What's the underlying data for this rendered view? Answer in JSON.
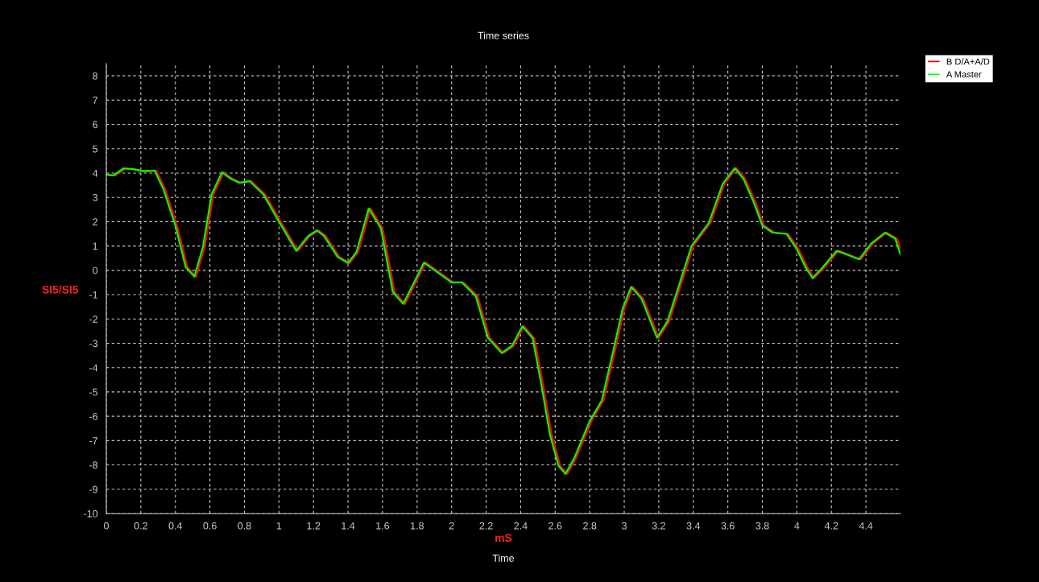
{
  "chart_data": {
    "type": "line",
    "title": "Time series",
    "xlabel": "mS",
    "ylabel": "SI5/SI5",
    "annotations": [
      "Time"
    ],
    "xlim": [
      0,
      4.6
    ],
    "xticks": [
      0,
      0.2,
      0.4,
      0.6,
      0.8,
      1,
      1.2,
      1.4,
      1.6,
      1.8,
      2,
      2.2,
      2.4,
      2.6,
      2.8,
      3,
      3.2,
      3.4,
      3.6,
      3.8,
      4,
      4.2,
      4.4
    ],
    "ylim": [
      -10,
      8.5
    ],
    "yticks": [
      -10,
      -9,
      -8,
      -7,
      -6,
      -5,
      -4,
      -3,
      -2,
      -1,
      0,
      1,
      2,
      3,
      4,
      5,
      6,
      7,
      8
    ],
    "grid": true,
    "legend": "top right",
    "marker": "none",
    "line_style": "solid",
    "series": [
      {
        "name": "B D/A+A/D",
        "color": "#ff0000",
        "x": [
          0.015,
          0.05,
          0.11,
          0.17,
          0.22,
          0.29,
          0.34,
          0.41,
          0.47,
          0.52,
          0.57,
          0.62,
          0.68,
          0.73,
          0.78,
          0.84,
          0.92,
          1.01,
          1.11,
          1.18,
          1.23,
          1.27,
          1.35,
          1.41,
          1.46,
          1.53,
          1.6,
          1.67,
          1.73,
          1.85,
          2.01,
          2.07,
          2.15,
          2.22,
          2.3,
          2.36,
          2.42,
          2.48,
          2.53,
          2.58,
          2.63,
          2.67,
          2.72,
          2.81,
          2.88,
          2.95,
          3.0,
          3.05,
          3.11,
          3.2,
          3.26,
          3.31,
          3.4,
          3.5,
          3.58,
          3.65,
          3.7,
          3.76,
          3.81,
          3.87,
          3.95,
          4.01,
          4.06,
          4.1,
          4.16,
          4.24,
          4.3,
          4.37,
          4.44,
          4.52,
          4.58,
          4.6
        ],
        "values": [
          3.93,
          3.9,
          4.19,
          4.15,
          4.08,
          4.1,
          3.35,
          1.84,
          0.13,
          -0.26,
          0.97,
          3.12,
          4.03,
          3.77,
          3.6,
          3.67,
          3.12,
          2.0,
          0.8,
          1.42,
          1.64,
          1.42,
          0.55,
          0.3,
          0.77,
          2.54,
          1.74,
          -0.9,
          -1.38,
          0.32,
          -0.5,
          -0.5,
          -1.06,
          -2.77,
          -3.4,
          -3.1,
          -2.3,
          -2.8,
          -4.7,
          -6.76,
          -8.05,
          -8.37,
          -7.73,
          -6.2,
          -5.35,
          -3.2,
          -1.6,
          -0.68,
          -1.16,
          -2.77,
          -2.1,
          -1.0,
          1.0,
          1.95,
          3.55,
          4.2,
          3.77,
          2.8,
          1.84,
          1.55,
          1.5,
          0.87,
          0.13,
          -0.32,
          0.13,
          0.8,
          0.65,
          0.45,
          1.1,
          1.55,
          1.3,
          0.9
        ]
      },
      {
        "name": "A Master",
        "color": "#00ff00",
        "x": [
          0.005,
          0.04,
          0.1,
          0.16,
          0.21,
          0.28,
          0.33,
          0.4,
          0.46,
          0.51,
          0.56,
          0.61,
          0.67,
          0.72,
          0.77,
          0.83,
          0.91,
          1.0,
          1.1,
          1.17,
          1.22,
          1.26,
          1.34,
          1.4,
          1.45,
          1.52,
          1.59,
          1.66,
          1.72,
          1.84,
          2.0,
          2.06,
          2.14,
          2.21,
          2.29,
          2.35,
          2.41,
          2.47,
          2.52,
          2.57,
          2.62,
          2.66,
          2.71,
          2.8,
          2.87,
          2.94,
          2.99,
          3.04,
          3.1,
          3.19,
          3.25,
          3.3,
          3.39,
          3.49,
          3.57,
          3.64,
          3.69,
          3.75,
          3.8,
          3.86,
          3.94,
          4.0,
          4.05,
          4.09,
          4.15,
          4.23,
          4.29,
          4.36,
          4.43,
          4.51,
          4.57,
          4.6
        ],
        "values": [
          3.93,
          3.9,
          4.19,
          4.15,
          4.08,
          4.1,
          3.35,
          1.84,
          0.13,
          -0.26,
          0.97,
          3.12,
          4.03,
          3.77,
          3.6,
          3.67,
          3.12,
          2.0,
          0.8,
          1.42,
          1.64,
          1.42,
          0.55,
          0.3,
          0.77,
          2.54,
          1.74,
          -0.9,
          -1.38,
          0.32,
          -0.5,
          -0.5,
          -1.06,
          -2.77,
          -3.4,
          -3.1,
          -2.3,
          -2.8,
          -4.7,
          -6.76,
          -8.05,
          -8.37,
          -7.73,
          -6.2,
          -5.35,
          -3.2,
          -1.6,
          -0.68,
          -1.16,
          -2.77,
          -2.1,
          -1.0,
          1.0,
          1.95,
          3.55,
          4.2,
          3.77,
          2.8,
          1.84,
          1.55,
          1.5,
          0.87,
          0.13,
          -0.32,
          0.13,
          0.8,
          0.65,
          0.45,
          1.1,
          1.55,
          1.3,
          0.65
        ]
      }
    ]
  }
}
